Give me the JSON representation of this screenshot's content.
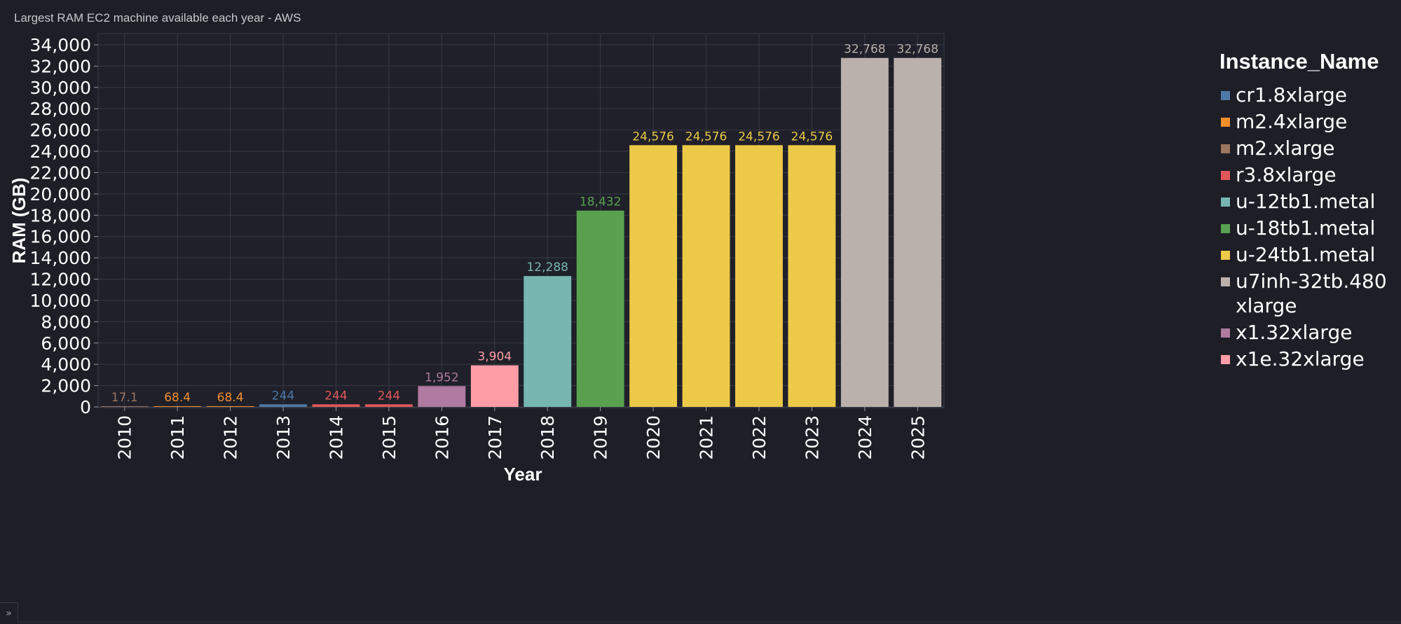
{
  "title": "Largest RAM EC2 machine available each year - AWS",
  "legend": {
    "title": "Instance_Name",
    "items": [
      {
        "label": "cr1.8xlarge",
        "color": "#4e79a7"
      },
      {
        "label": "m2.4xlarge",
        "color": "#f28e2b"
      },
      {
        "label": "m2.xlarge",
        "color": "#9c755f"
      },
      {
        "label": "r3.8xlarge",
        "color": "#e15759"
      },
      {
        "label": "u-12tb1.metal",
        "color": "#76b7b2"
      },
      {
        "label": "u-18tb1.metal",
        "color": "#59a14f"
      },
      {
        "label": "u-24tb1.metal",
        "color": "#edc948"
      },
      {
        "label": "u7inh-32tb.480xlarge",
        "color": "#bab0ac"
      },
      {
        "label": "x1.32xlarge",
        "color": "#b07aa1"
      },
      {
        "label": "x1e.32xlarge",
        "color": "#ff9da7"
      }
    ]
  },
  "chart_data": {
    "type": "bar",
    "title": "Largest RAM EC2 machine available each year - AWS",
    "xlabel": "Year",
    "ylabel": "RAM (GB)",
    "ylim": [
      0,
      35000
    ],
    "yticks": [
      0,
      2000,
      4000,
      6000,
      8000,
      10000,
      12000,
      14000,
      16000,
      18000,
      20000,
      22000,
      24000,
      26000,
      28000,
      30000,
      32000,
      34000
    ],
    "ytick_labels": [
      "0",
      "2,000",
      "4,000",
      "6,000",
      "8,000",
      "10,000",
      "12,000",
      "14,000",
      "16,000",
      "18,000",
      "20,000",
      "22,000",
      "24,000",
      "26,000",
      "28,000",
      "30,000",
      "32,000",
      "34,000"
    ],
    "grid": true,
    "legend_position": "right",
    "color_by": "Instance_Name",
    "categories": [
      "2010",
      "2011",
      "2012",
      "2013",
      "2014",
      "2015",
      "2016",
      "2017",
      "2018",
      "2019",
      "2020",
      "2021",
      "2022",
      "2023",
      "2024",
      "2025"
    ],
    "values": [
      17.1,
      68.4,
      68.4,
      244,
      244,
      244,
      1952,
      3904,
      12288,
      18432,
      24576,
      24576,
      24576,
      24576,
      32768,
      32768
    ],
    "value_labels": [
      "17.1",
      "68.4",
      "68.4",
      "244",
      "244",
      "244",
      "1,952",
      "3,904",
      "12,288",
      "18,432",
      "24,576",
      "24,576",
      "24,576",
      "24,576",
      "32,768",
      "32,768"
    ],
    "instances": [
      "m2.xlarge",
      "m2.4xlarge",
      "m2.4xlarge",
      "cr1.8xlarge",
      "r3.8xlarge",
      "r3.8xlarge",
      "x1.32xlarge",
      "x1e.32xlarge",
      "u-12tb1.metal",
      "u-18tb1.metal",
      "u-24tb1.metal",
      "u-24tb1.metal",
      "u-24tb1.metal",
      "u-24tb1.metal",
      "u7inh-32tb.480xlarge",
      "u7inh-32tb.480xlarge"
    ]
  }
}
